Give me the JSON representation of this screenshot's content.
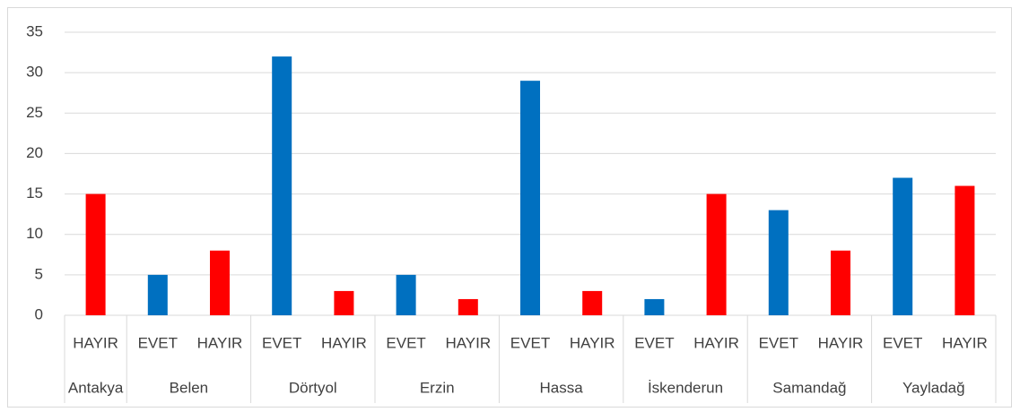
{
  "chart_data": {
    "type": "bar",
    "groups": [
      {
        "name": "Antakya",
        "categories": [
          "HAYIR"
        ],
        "values": [
          15
        ]
      },
      {
        "name": "Belen",
        "categories": [
          "EVET",
          "HAYIR"
        ],
        "values": [
          5,
          8
        ]
      },
      {
        "name": "Dörtyol",
        "categories": [
          "EVET",
          "HAYIR"
        ],
        "values": [
          32,
          3
        ]
      },
      {
        "name": "Erzin",
        "categories": [
          "EVET",
          "HAYIR"
        ],
        "values": [
          5,
          2
        ]
      },
      {
        "name": "Hassa",
        "categories": [
          "EVET",
          "HAYIR"
        ],
        "values": [
          29,
          3
        ]
      },
      {
        "name": "İskenderun",
        "categories": [
          "EVET",
          "HAYIR"
        ],
        "values": [
          2,
          15
        ]
      },
      {
        "name": "Samandağ",
        "categories": [
          "EVET",
          "HAYIR"
        ],
        "values": [
          13,
          8
        ]
      },
      {
        "name": "Yayladağ",
        "categories": [
          "EVET",
          "HAYIR"
        ],
        "values": [
          17,
          16
        ]
      }
    ],
    "category_colors": [
      {
        "name": "EVET",
        "color": "#0070c0"
      },
      {
        "name": "HAYIR",
        "color": "#ff0000"
      }
    ],
    "ylim": [
      0,
      35
    ],
    "yticks": [
      0,
      5,
      10,
      15,
      20,
      25,
      30,
      35
    ],
    "grid": true
  }
}
